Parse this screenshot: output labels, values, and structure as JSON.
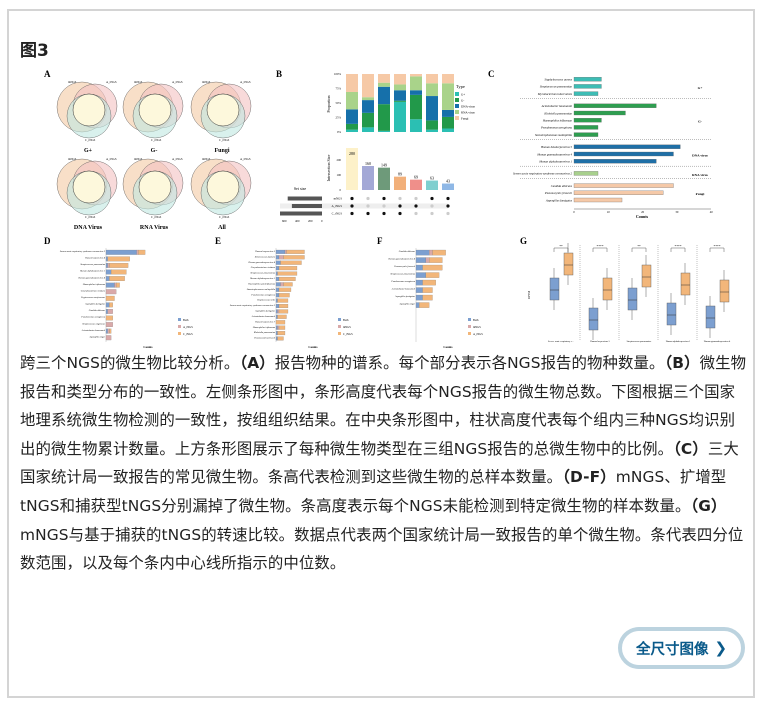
{
  "figure_title": "图3",
  "figure": {
    "panel_letters": [
      "A",
      "B",
      "C",
      "D",
      "E",
      "F",
      "G"
    ],
    "venn": {
      "set_labels": [
        "mNGS",
        "A_tNGS",
        "C_tNGS"
      ],
      "titles": [
        "G+",
        "G-",
        "Fungi",
        "DNA Virus",
        "RNA Virus",
        "All"
      ]
    },
    "upset": {
      "proportion_label": "Proportion",
      "proportion_ticks": [
        "0%",
        "25%",
        "50%",
        "75%",
        "100%"
      ],
      "intersection_label": "Intersection Size",
      "intersection_ticks": [
        "0",
        "100",
        "200"
      ],
      "intersection_sizes": [
        280,
        160,
        149,
        89,
        69,
        63,
        43
      ],
      "intersection_colors": [
        "#fdf1c9",
        "#a3a8d6",
        "#6e9a7a",
        "#f2b07a",
        "#ef8f8a",
        "#7fcfcf",
        "#8fb8e6"
      ],
      "proportions": [
        [
          0.04,
          0.1,
          0.25,
          0.3,
          0.31
        ],
        [
          0.08,
          0.25,
          0.22,
          0.05,
          0.4
        ],
        [
          0.02,
          0.46,
          0.3,
          0.07,
          0.15
        ],
        [
          0.52,
          0.02,
          0.18,
          0.1,
          0.18
        ],
        [
          0.22,
          0.42,
          0.08,
          0.24,
          0.04
        ],
        [
          0.04,
          0.16,
          0.42,
          0.22,
          0.16
        ],
        [
          0.06,
          0.2,
          0.12,
          0.46,
          0.16
        ]
      ],
      "legend_title": "Type",
      "legend": [
        {
          "label": "G+",
          "color": "#2bbfb3"
        },
        {
          "label": "G-",
          "color": "#22994a"
        },
        {
          "label": "DNA virus",
          "color": "#1670aa"
        },
        {
          "label": "RNA virus",
          "color": "#a9d38a"
        },
        {
          "label": "Fungi",
          "color": "#f6c9a6"
        }
      ],
      "set_size_label": "Set size",
      "set_size_ticks": [
        "600",
        "400",
        "200",
        "0"
      ],
      "set_sizes": [
        490,
        430,
        600
      ],
      "sets": [
        "mNGS",
        "A_tNGS",
        "C_tNGS"
      ],
      "matrix": [
        [
          1,
          1,
          1
        ],
        [
          0,
          0,
          1
        ],
        [
          1,
          0,
          1
        ],
        [
          0,
          1,
          1
        ],
        [
          0,
          1,
          0
        ],
        [
          1,
          0,
          0
        ],
        [
          1,
          1,
          0
        ]
      ]
    },
    "common": {
      "x_label": "Counts",
      "x_ticks": [
        "0",
        "10",
        "20",
        "30",
        "40"
      ],
      "groups": [
        {
          "name": "G+",
          "color": "#3dbdb5",
          "items": [
            [
              "Staphylococcus aureus",
              8
            ],
            [
              "Streptococcus pneumoniae",
              8
            ],
            [
              "Mycobacterium tuberculosis",
              7
            ]
          ]
        },
        {
          "name": "G-",
          "color": "#2e9e50",
          "items": [
            [
              "Acinetobacter baumannii",
              24
            ],
            [
              "Klebsiella pneumoniae",
              15
            ],
            [
              "Haemophilus influenzae",
              8
            ],
            [
              "Pseudomonas aeruginosa",
              7
            ],
            [
              "Stenotrophomonas maltophilia",
              7
            ]
          ]
        },
        {
          "name": "DNA virus",
          "color": "#1f6fa6",
          "items": [
            [
              "Human betaherpesvirus 5",
              31
            ],
            [
              "Human gammaherpesvirus 4",
              29
            ],
            [
              "Human alphaherpesvirus 1",
              24
            ]
          ]
        },
        {
          "name": "RNA virus",
          "color": "#a8d08d",
          "items": [
            [
              "Severe acute respiratory syndrome coronavirus 2",
              7
            ]
          ]
        },
        {
          "name": "Fungi",
          "color": "#f5c9a8",
          "items": [
            [
              "Candida albicans",
              29
            ],
            [
              "Pneumocystis jirovecii",
              26
            ],
            [
              "Aspergillus fumigatus",
              14
            ]
          ]
        }
      ]
    },
    "missed": {
      "x_label": "Counts",
      "D": {
        "legend": [
          "Both",
          "A_tNGS",
          "C_tNGS"
        ],
        "labels": [
          "Severe acute respiratory syndrome coronavirus 2",
          "Human herpesvirus 4",
          "Streptococcus pneumoniae",
          "Human alphaherpesvirus 1",
          "Human gammaherpesvirus 4",
          "Haemophilus influenzae",
          "Corynebacterium striatum",
          "Cryptococcus neoformans",
          "Aspergillus fumigatus",
          "Candida albicans",
          "Pseudomonas aeruginosa",
          "Streptococcus anginosus",
          "Acinetobacter baumannii",
          "Aspergillus niger"
        ],
        "values": [
          [
            18,
            1,
            4
          ],
          [
            1,
            0,
            13
          ],
          [
            1,
            1,
            11
          ],
          [
            3,
            0,
            9
          ],
          [
            2,
            0,
            9
          ],
          [
            5,
            1,
            2
          ],
          [
            0,
            6,
            0
          ],
          [
            0,
            0,
            5
          ],
          [
            2,
            0,
            2
          ],
          [
            1,
            3,
            0
          ],
          [
            0,
            0,
            4
          ],
          [
            0,
            4,
            0
          ],
          [
            1,
            1,
            1
          ],
          [
            0,
            3,
            0
          ]
        ]
      },
      "E": {
        "legend": [
          "Both",
          "mNGS",
          "C_tNGS"
        ],
        "labels": [
          "Human herpesvirus 5",
          "Enterococcus faecium",
          "Human gammaherpesvirus 4",
          "Corynebacterium striatum",
          "Streptococcus pneumoniae",
          "Human alphaherpesvirus 1",
          "Haemophilus parainfluenzae",
          "Stenotrophomonas maltophilia",
          "Pseudomonas aeruginosa",
          "Streptococcus mitis",
          "Severe acute respiratory syndrome coronavirus 2",
          "Aspergillus fumigatus",
          "Acinetobacter baumannii",
          "Human herpesvirus 7",
          "Haemophilus influenzae",
          "Klebsiella pneumoniae",
          "Pneumocystis jirovecii"
        ],
        "values": [
          [
            6,
            1,
            12
          ],
          [
            2,
            3,
            14
          ],
          [
            3,
            0,
            14
          ],
          [
            2,
            0,
            12
          ],
          [
            1,
            0,
            13
          ],
          [
            2,
            0,
            11
          ],
          [
            3,
            2,
            6
          ],
          [
            2,
            0,
            8
          ],
          [
            2,
            0,
            7
          ],
          [
            1,
            0,
            7
          ],
          [
            2,
            0,
            6
          ],
          [
            1,
            1,
            6
          ],
          [
            1,
            0,
            6
          ],
          [
            0,
            0,
            6
          ],
          [
            1,
            1,
            4
          ],
          [
            1,
            0,
            5
          ],
          [
            1,
            0,
            4
          ]
        ]
      },
      "F": {
        "legend": [
          "Both",
          "mNGS",
          "A_tNGS"
        ],
        "labels": [
          "Candida albicans",
          "Human gammaherpesvirus 4",
          "Pneumocystis jirovecii",
          "Streptococcus pneumoniae",
          "Pseudomonas aeruginosa",
          "Acinetobacter baumannii",
          "Aspergillus fumigatus",
          "Aspergillus niger"
        ],
        "values": [
          [
            4,
            1,
            4
          ],
          [
            3,
            1,
            4
          ],
          [
            2,
            0,
            6
          ],
          [
            3,
            0,
            4
          ],
          [
            2,
            0,
            4
          ],
          [
            2,
            0,
            3
          ],
          [
            2,
            0,
            3
          ],
          [
            1,
            0,
            3
          ]
        ]
      }
    },
    "speed": {
      "y_label": "RPTM",
      "significance": [
        "**",
        "****",
        "**",
        "****",
        "****"
      ],
      "groups": [
        "Severe acute respiratory syndrome coronavirus 2",
        "Human herpesvirus 5",
        "Streptococcus pneumoniae",
        "Human alphaherpesvirus 1",
        "Human gammaherpesvirus 4"
      ],
      "method_labels": [
        "mNGS",
        "C_tNGS"
      ],
      "method_colors": [
        "#7c9fd0",
        "#f2b67a"
      ]
    }
  },
  "caption": [
    {
      "t": "跨三个NGS的微生物比较分析。"
    },
    {
      "t": "（A）",
      "b": true
    },
    {
      "t": "报告物种的谱系。每个部分表示各NGS报告的物种数量。"
    },
    {
      "t": "（B）",
      "b": true
    },
    {
      "t": "微生物报告和类型分布的一致性。左侧条形图中，条形高度代表每个NGS报告的微生物总数。下图根据三个国家地理系统微生物检测的一致性，按组组织结果。在中央条形图中，柱状高度代表每个组内三种NGS均识别出的微生物累计数量。上方条形图展示了每种微生物类型在三组NGS报告的总微生物中的比例。"
    },
    {
      "t": "（C）",
      "b": true
    },
    {
      "t": "三大国家统计局一致报告的常见微生物。条高代表检测到这些微生物的总样本数量。"
    },
    {
      "t": "（D-F）",
      "b": true
    },
    {
      "t": "mNGS、扩增型tNGS和捕获型tNGS分别漏掉了微生物。条高度表示每个NGS未能检测到特定微生物的样本数量。"
    },
    {
      "t": "（G）",
      "b": true
    },
    {
      "t": "mNGS与基于捕获的tNGS的转速比较。数据点代表两个国家统计局一致报告的单个微生物。条代表四分位数范围，以及每个条内中心线所指示的中位数。"
    }
  ],
  "button": {
    "label": "全尺寸图像",
    "icon": "chevron-right-icon"
  }
}
